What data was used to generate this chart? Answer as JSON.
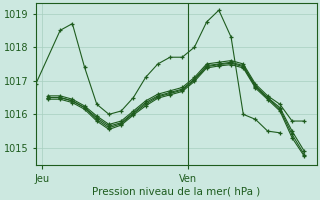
{
  "title": "Pression niveau de la mer( hPa )",
  "xlabel_jeu": "Jeu",
  "xlabel_ven": "Ven",
  "ylim": [
    1014.5,
    1019.3
  ],
  "xlim": [
    0,
    46
  ],
  "yticks": [
    1015,
    1016,
    1017,
    1018,
    1019
  ],
  "jeu_x": 1,
  "ven_x": 25,
  "bg_color": "#cce8e0",
  "grid_color": "#a8cfc0",
  "line_color": "#1e5c1e",
  "series": [
    {
      "x": [
        0,
        4,
        6,
        8,
        10,
        12,
        14,
        16,
        18,
        20,
        22,
        24,
        26,
        28,
        30,
        32,
        34,
        36,
        38,
        40
      ],
      "y": [
        1016.9,
        1018.5,
        1018.7,
        1017.4,
        1016.3,
        1016.0,
        1016.1,
        1016.5,
        1017.1,
        1017.5,
        1017.7,
        1017.7,
        1018.0,
        1018.75,
        1019.1,
        1018.3,
        1016.0,
        1015.85,
        1015.5,
        1015.45
      ]
    },
    {
      "x": [
        2,
        4,
        6,
        8,
        10,
        12,
        14,
        16,
        18,
        20,
        22,
        24,
        26,
        28,
        30,
        32,
        34,
        36,
        38,
        40,
        42,
        44
      ],
      "y": [
        1016.55,
        1016.55,
        1016.45,
        1016.25,
        1015.95,
        1015.7,
        1015.8,
        1016.1,
        1016.4,
        1016.6,
        1016.7,
        1016.8,
        1017.1,
        1017.5,
        1017.55,
        1017.6,
        1017.5,
        1016.9,
        1016.55,
        1016.3,
        1015.8,
        1015.8
      ]
    },
    {
      "x": [
        2,
        4,
        6,
        8,
        10,
        12,
        14,
        16,
        18,
        20,
        22,
        24,
        26,
        28,
        30,
        32,
        34,
        36,
        38,
        40,
        42,
        44
      ],
      "y": [
        1016.5,
        1016.5,
        1016.4,
        1016.2,
        1015.9,
        1015.65,
        1015.75,
        1016.05,
        1016.35,
        1016.55,
        1016.65,
        1016.75,
        1017.05,
        1017.45,
        1017.5,
        1017.55,
        1017.45,
        1016.85,
        1016.5,
        1016.2,
        1015.5,
        1014.9
      ]
    },
    {
      "x": [
        2,
        4,
        6,
        8,
        10,
        12,
        14,
        16,
        18,
        20,
        22,
        24,
        26,
        28,
        30,
        32,
        34,
        36,
        38,
        40,
        42,
        44
      ],
      "y": [
        1016.5,
        1016.5,
        1016.4,
        1016.2,
        1015.85,
        1015.6,
        1015.72,
        1016.02,
        1016.3,
        1016.52,
        1016.62,
        1016.72,
        1017.02,
        1017.42,
        1017.48,
        1017.52,
        1017.42,
        1016.82,
        1016.48,
        1016.15,
        1015.4,
        1014.8
      ]
    },
    {
      "x": [
        2,
        4,
        6,
        8,
        10,
        12,
        14,
        16,
        18,
        20,
        22,
        24,
        26,
        28,
        30,
        32,
        34,
        36,
        38,
        40,
        42,
        44
      ],
      "y": [
        1016.45,
        1016.45,
        1016.35,
        1016.15,
        1015.8,
        1015.55,
        1015.68,
        1015.98,
        1016.25,
        1016.48,
        1016.58,
        1016.68,
        1016.98,
        1017.38,
        1017.44,
        1017.48,
        1017.38,
        1016.78,
        1016.44,
        1016.1,
        1015.3,
        1014.75
      ]
    }
  ]
}
